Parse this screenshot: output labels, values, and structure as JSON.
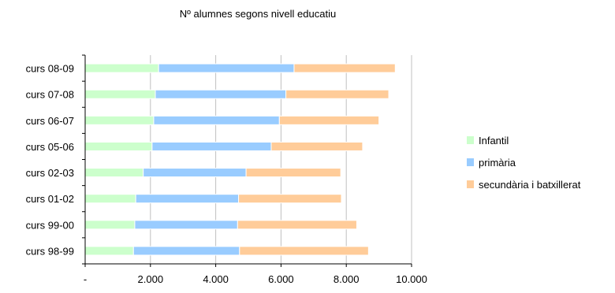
{
  "chart_data": {
    "type": "bar",
    "orientation": "horizontal",
    "stacked": true,
    "title": "Nº alumnes segons nivell educatiu",
    "xlabel": "",
    "ylabel": "",
    "xlim": [
      0,
      10000
    ],
    "x_ticks": [
      0,
      2000,
      4000,
      6000,
      8000,
      10000
    ],
    "x_tick_labels": [
      "-",
      "2.000",
      "4.000",
      "6.000",
      "8.000",
      "10.000"
    ],
    "grid": true,
    "legend_position": "right",
    "categories": [
      "curs 08-09",
      "curs 07-08",
      "curs 06-07",
      "curs 05-06",
      "curs 02-03",
      "curs 01-02",
      "curs 99-00",
      "curs 98-99"
    ],
    "series": [
      {
        "name": "Infantil",
        "color": "#ccffcc",
        "values": [
          2250,
          2150,
          2100,
          2050,
          1780,
          1550,
          1520,
          1480
        ]
      },
      {
        "name": "primària",
        "color": "#99ccff",
        "values": [
          4150,
          4000,
          3850,
          3650,
          3150,
          3150,
          3150,
          3250
        ]
      },
      {
        "name": "secundària i batxillerat",
        "color": "#ffcc99",
        "values": [
          3100,
          3150,
          3050,
          2800,
          2900,
          3150,
          3650,
          3950
        ]
      }
    ]
  }
}
